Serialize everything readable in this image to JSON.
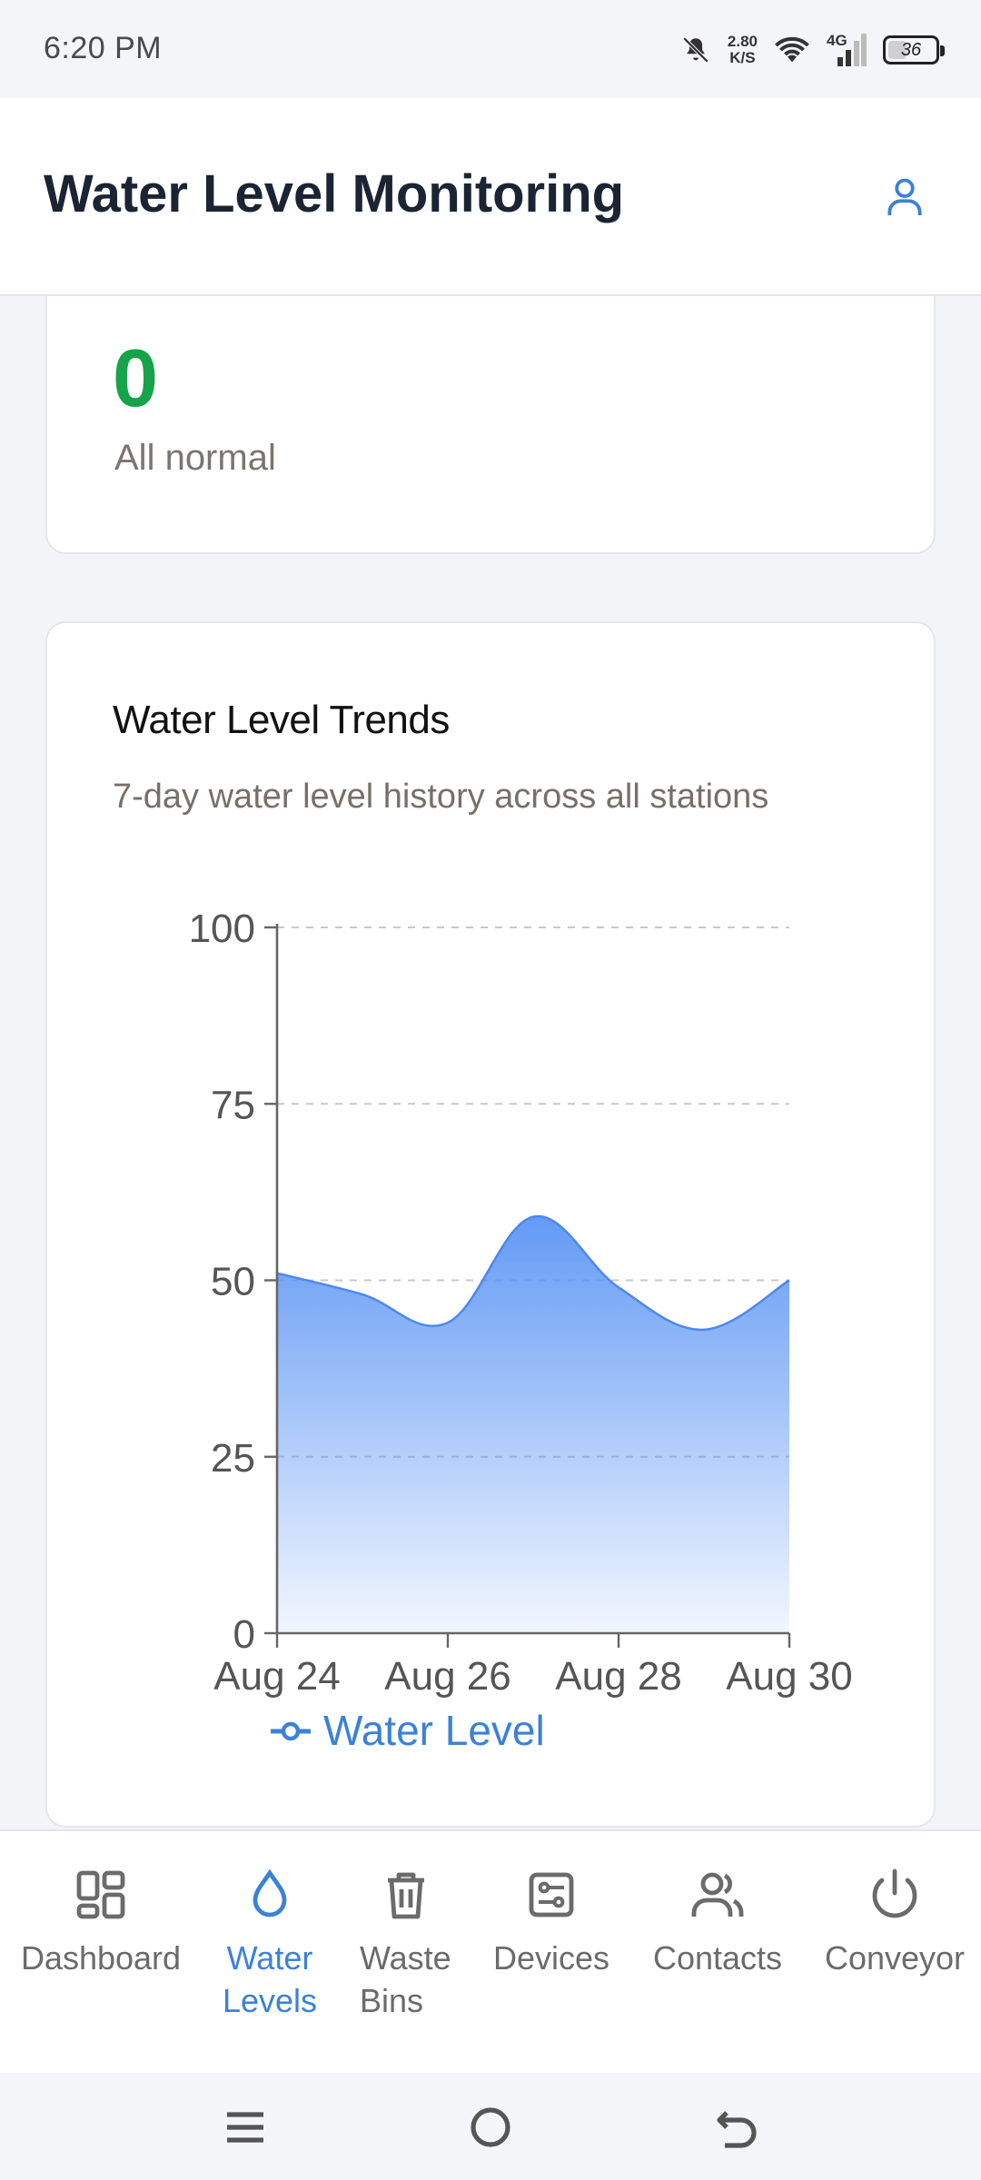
{
  "status_bar": {
    "time": "6:20 PM",
    "net_speed_value": "2.80",
    "net_speed_unit": "K/S",
    "network_type": "4G",
    "battery_level": "36",
    "battery_fraction": 0.36,
    "icons": [
      "mute-bell-icon",
      "wifi-icon",
      "signal-icon",
      "battery-icon"
    ]
  },
  "header": {
    "title": "Water Level Monitoring",
    "profile_icon": "user-icon",
    "accent_color": "#3b82d6"
  },
  "alerts_card": {
    "count": "0",
    "status": "All normal",
    "count_color": "#16a34a"
  },
  "trends_card": {
    "title": "Water Level Trends",
    "subtitle": "7-day water level history across all stations"
  },
  "chart_data": {
    "type": "area",
    "x": [
      "Aug 24",
      "Aug 25",
      "Aug 26",
      "Aug 27",
      "Aug 28",
      "Aug 29",
      "Aug 30"
    ],
    "x_tick_labels": [
      "Aug 24",
      "Aug 26",
      "Aug 28",
      "Aug 30"
    ],
    "series": [
      {
        "name": "Water Level",
        "values": [
          51,
          48,
          44,
          59,
          49,
          43,
          50
        ],
        "color": "#3b82f6"
      }
    ],
    "ylim": [
      0,
      100
    ],
    "y_ticks": [
      0,
      25,
      50,
      75,
      100
    ],
    "grid": "horizontal dashed",
    "legend": "bottom-center",
    "legend_label": "Water Level",
    "legend_color": "#3b82d6"
  },
  "bottom_nav": {
    "items": [
      {
        "label": "Dashboard",
        "icon": "grid-icon",
        "active": false
      },
      {
        "label": "Water\nLevels",
        "label_line1": "Water",
        "label_line2": "Levels",
        "icon": "drop-icon",
        "active": true
      },
      {
        "label_line1": "Waste",
        "label_line2": "Bins",
        "icon": "trash-icon",
        "active": false
      },
      {
        "label": "Devices",
        "icon": "device-icon",
        "active": false
      },
      {
        "label": "Contacts",
        "icon": "users-icon",
        "active": false
      },
      {
        "label": "Conveyor",
        "icon": "power-icon",
        "active": false
      }
    ]
  },
  "system_nav": {
    "buttons": [
      "menu-icon",
      "home-icon",
      "back-icon"
    ]
  }
}
